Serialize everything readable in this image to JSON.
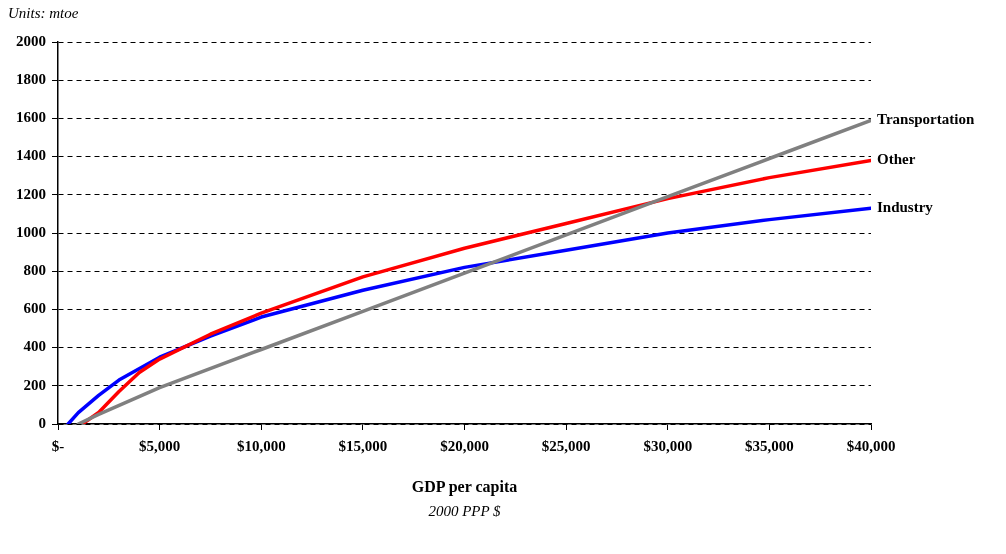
{
  "chart_data": {
    "type": "line",
    "xlabel": "GDP per capita",
    "annotations": [
      "Units: mtoe",
      "2000 PPP $"
    ],
    "xlim": [
      0,
      40000
    ],
    "xticks": [
      {
        "value": 0,
        "label": "$-"
      },
      {
        "value": 5000,
        "label": "$5,000"
      },
      {
        "value": 10000,
        "label": "$10,000"
      },
      {
        "value": 15000,
        "label": "$15,000"
      },
      {
        "value": 20000,
        "label": "$20,000"
      },
      {
        "value": 25000,
        "label": "$25,000"
      },
      {
        "value": 30000,
        "label": "$30,000"
      },
      {
        "value": 35000,
        "label": "$35,000"
      },
      {
        "value": 40000,
        "label": "$40,000"
      }
    ],
    "ylim": [
      0,
      2000
    ],
    "yticks": [
      0,
      200,
      400,
      600,
      800,
      1000,
      1200,
      1400,
      1600,
      1800,
      2000
    ],
    "grid": "y",
    "legend": false,
    "marker": "none",
    "line_style": "solid",
    "series": [
      {
        "name": "Transportation",
        "color": "#808080",
        "x": [
          1000,
          2000,
          5000,
          10000,
          15000,
          20000,
          25000,
          30000,
          35000,
          40000
        ],
        "values": [
          0,
          50,
          190,
          390,
          590,
          790,
          990,
          1190,
          1390,
          1590
        ]
      },
      {
        "name": "Other",
        "color": "#ff0000",
        "x": [
          1200,
          2000,
          3000,
          4000,
          5000,
          7500,
          10000,
          15000,
          20000,
          25000,
          30000,
          35000,
          40000
        ],
        "values": [
          0,
          60,
          170,
          270,
          340,
          470,
          580,
          770,
          920,
          1050,
          1180,
          1290,
          1380
        ]
      },
      {
        "name": "Industry",
        "color": "#0000ff",
        "x": [
          500,
          1000,
          2000,
          3000,
          5000,
          7500,
          10000,
          15000,
          20000,
          25000,
          30000,
          35000,
          40000
        ],
        "values": [
          0,
          60,
          150,
          230,
          350,
          460,
          560,
          700,
          820,
          910,
          1000,
          1070,
          1130
        ]
      }
    ]
  }
}
